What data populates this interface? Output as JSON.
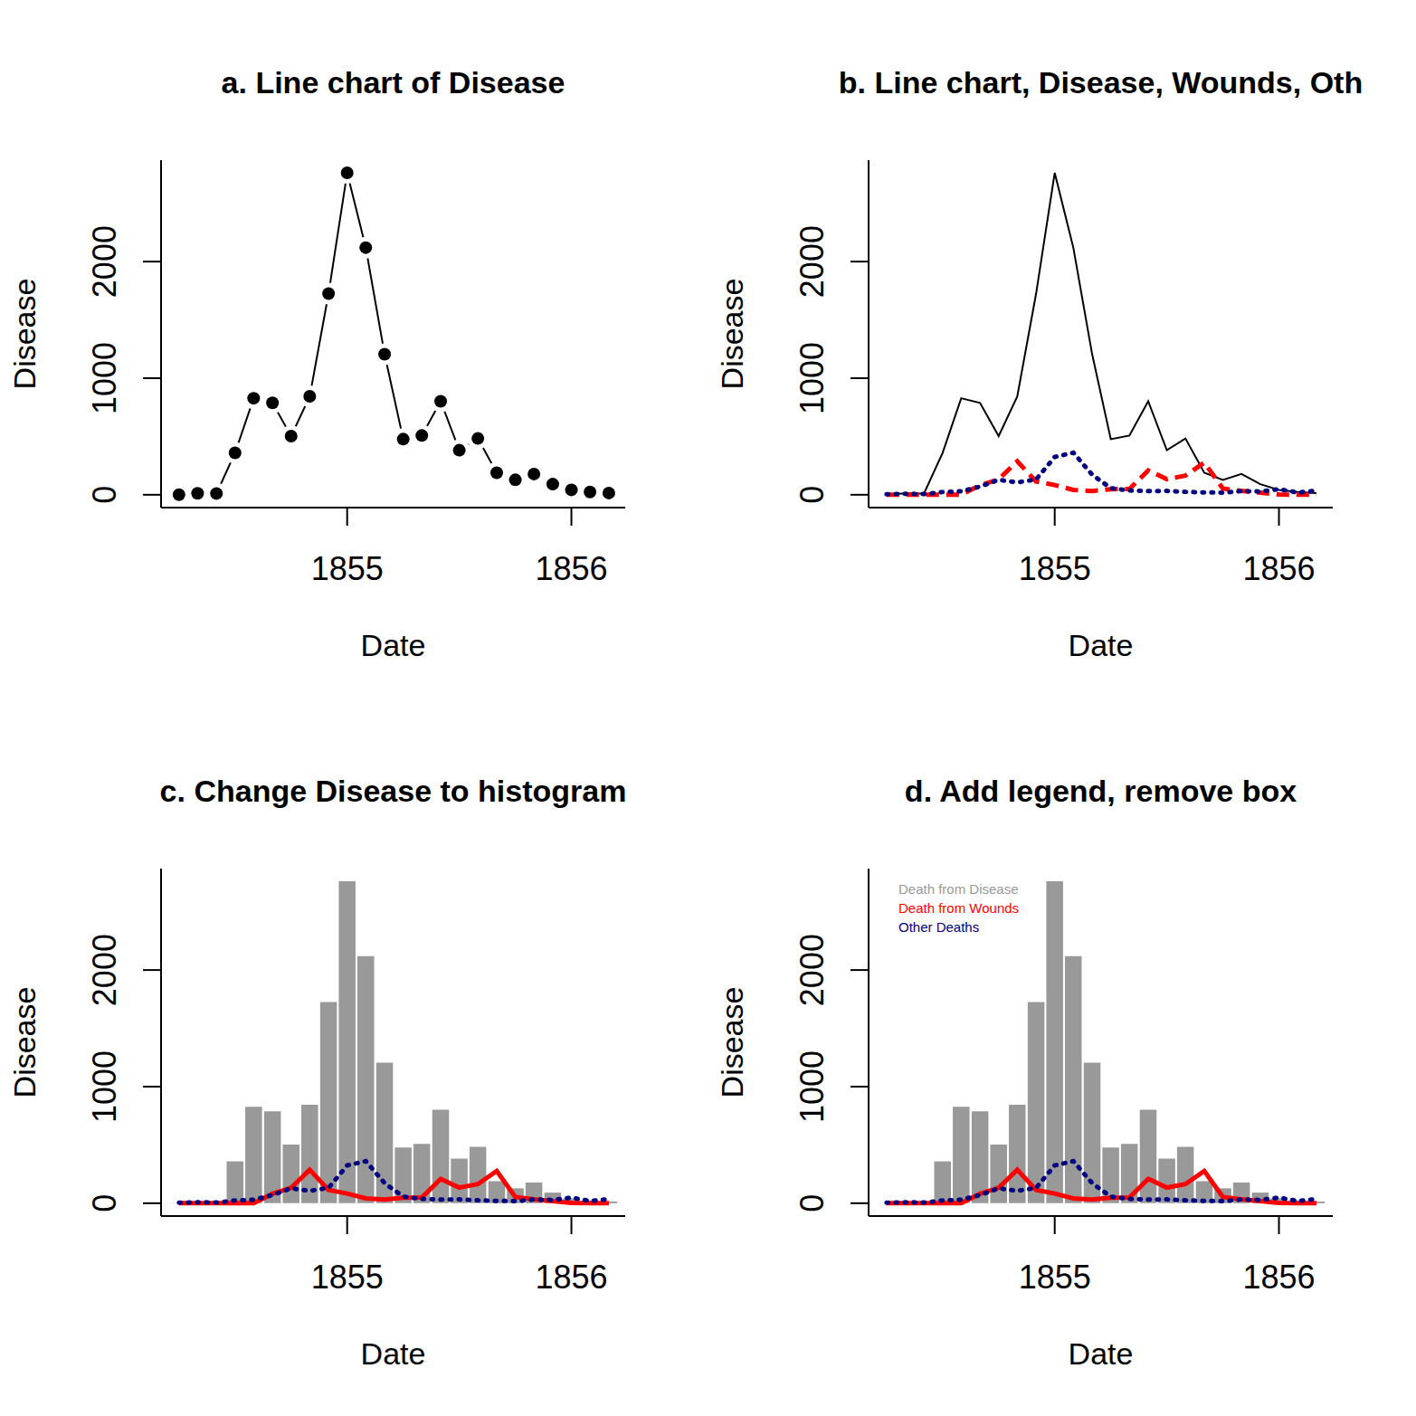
{
  "chart_data": [
    {
      "type": "line",
      "title": "a. Line chart of Disease",
      "x_label": "Date",
      "y_label": "Disease",
      "x": [
        1854.25,
        1854.333,
        1854.417,
        1854.5,
        1854.583,
        1854.667,
        1854.75,
        1854.833,
        1854.917,
        1855,
        1855.083,
        1855.167,
        1855.25,
        1855.333,
        1855.417,
        1855.5,
        1855.583,
        1855.667,
        1855.75,
        1855.833,
        1855.917,
        1856,
        1856.083,
        1856.167
      ],
      "xlim": [
        1854.17,
        1856.24
      ],
      "ylim": [
        -110,
        2870
      ],
      "xticks": [
        1855,
        1856
      ],
      "yticks": [
        0,
        1000,
        2000
      ],
      "series": [
        {
          "color": "#000000",
          "marker": "circle",
          "line_style": "solid",
          "values": [
            1,
            12,
            11,
            359,
            828,
            788,
            503,
            844,
            1725,
            2761,
            2120,
            1205,
            477,
            508,
            802,
            382,
            483,
            189,
            128,
            178,
            91,
            42,
            24,
            15
          ]
        }
      ]
    },
    {
      "type": "line",
      "title": "b. Line chart, Disease, Wounds, Oth",
      "x_label": "Date",
      "y_label": "Disease",
      "x": [
        1854.25,
        1854.333,
        1854.417,
        1854.5,
        1854.583,
        1854.667,
        1854.75,
        1854.833,
        1854.917,
        1855,
        1855.083,
        1855.167,
        1855.25,
        1855.333,
        1855.417,
        1855.5,
        1855.583,
        1855.667,
        1855.75,
        1855.833,
        1855.917,
        1856,
        1856.083,
        1856.167
      ],
      "xlim": [
        1854.17,
        1856.24
      ],
      "ylim": [
        -110,
        2870
      ],
      "xticks": [
        1855,
        1856
      ],
      "yticks": [
        0,
        1000,
        2000
      ],
      "series": [
        {
          "color": "#000000",
          "line_style": "solid",
          "values": [
            1,
            12,
            11,
            359,
            828,
            788,
            503,
            844,
            1725,
            2761,
            2120,
            1205,
            477,
            508,
            802,
            382,
            483,
            189,
            128,
            178,
            91,
            42,
            24,
            15
          ]
        },
        {
          "color": "#ff0000",
          "line_style": "dashed",
          "values": [
            0,
            0,
            0,
            0,
            1,
            81,
            132,
            287,
            114,
            83,
            42,
            32,
            48,
            49,
            209,
            134,
            164,
            276,
            53,
            33,
            18,
            2,
            0,
            0
          ]
        },
        {
          "color": "#000080",
          "line_style": "dotted",
          "values": [
            5,
            9,
            6,
            23,
            30,
            70,
            128,
            106,
            131,
            324,
            361,
            172,
            57,
            37,
            31,
            33,
            25,
            20,
            18,
            32,
            28,
            48,
            19,
            35
          ]
        }
      ]
    },
    {
      "type": "line",
      "title": "c. Change Disease to histogram",
      "x_label": "Date",
      "y_label": "Disease",
      "x": [
        1854.25,
        1854.333,
        1854.417,
        1854.5,
        1854.583,
        1854.667,
        1854.75,
        1854.833,
        1854.917,
        1855,
        1855.083,
        1855.167,
        1855.25,
        1855.333,
        1855.417,
        1855.5,
        1855.583,
        1855.667,
        1855.75,
        1855.833,
        1855.917,
        1856,
        1856.083,
        1856.167
      ],
      "xlim": [
        1854.17,
        1856.24
      ],
      "ylim": [
        -110,
        2870
      ],
      "xticks": [
        1855,
        1856
      ],
      "yticks": [
        0,
        1000,
        2000
      ],
      "series": [
        {
          "type": "bar",
          "color": "#999999",
          "values": [
            1,
            12,
            11,
            359,
            828,
            788,
            503,
            844,
            1725,
            2761,
            2120,
            1205,
            477,
            508,
            802,
            382,
            483,
            189,
            128,
            178,
            91,
            42,
            24,
            15
          ]
        },
        {
          "color": "#ff0000",
          "line_style": "solid",
          "values": [
            0,
            0,
            0,
            0,
            1,
            81,
            132,
            287,
            114,
            83,
            42,
            32,
            48,
            49,
            209,
            134,
            164,
            276,
            53,
            33,
            18,
            2,
            0,
            0
          ]
        },
        {
          "color": "#000080",
          "line_style": "dotted",
          "values": [
            5,
            9,
            6,
            23,
            30,
            70,
            128,
            106,
            131,
            324,
            361,
            172,
            57,
            37,
            31,
            33,
            25,
            20,
            18,
            32,
            28,
            48,
            19,
            35
          ]
        }
      ]
    },
    {
      "type": "line",
      "title": "d. Add legend, remove box",
      "x_label": "Date",
      "y_label": "Disease",
      "legend": "top-left",
      "x": [
        1854.25,
        1854.333,
        1854.417,
        1854.5,
        1854.583,
        1854.667,
        1854.75,
        1854.833,
        1854.917,
        1855,
        1855.083,
        1855.167,
        1855.25,
        1855.333,
        1855.417,
        1855.5,
        1855.583,
        1855.667,
        1855.75,
        1855.833,
        1855.917,
        1856,
        1856.083,
        1856.167
      ],
      "xlim": [
        1854.17,
        1856.24
      ],
      "ylim": [
        -110,
        2870
      ],
      "xticks": [
        1855,
        1856
      ],
      "yticks": [
        0,
        1000,
        2000
      ],
      "series": [
        {
          "name": "Death from Disease",
          "type": "bar",
          "color": "#999999",
          "values": [
            1,
            12,
            11,
            359,
            828,
            788,
            503,
            844,
            1725,
            2761,
            2120,
            1205,
            477,
            508,
            802,
            382,
            483,
            189,
            128,
            178,
            91,
            42,
            24,
            15
          ]
        },
        {
          "name": "Death from Wounds",
          "color": "#ff0000",
          "line_style": "solid",
          "values": [
            0,
            0,
            0,
            0,
            1,
            81,
            132,
            287,
            114,
            83,
            42,
            32,
            48,
            49,
            209,
            134,
            164,
            276,
            53,
            33,
            18,
            2,
            0,
            0
          ]
        },
        {
          "name": "Other Deaths",
          "color": "#000080",
          "line_style": "dotted",
          "values": [
            5,
            9,
            6,
            23,
            30,
            70,
            128,
            106,
            131,
            324,
            361,
            172,
            57,
            37,
            31,
            33,
            25,
            20,
            18,
            32,
            28,
            48,
            19,
            35
          ]
        }
      ]
    }
  ]
}
